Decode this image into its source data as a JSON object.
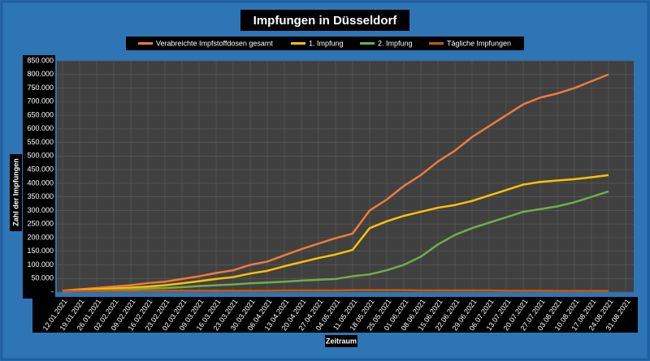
{
  "chart_data": {
    "type": "line",
    "title": "Impfungen in Düsseldorf",
    "x_label": "Zeitraum",
    "y_label": "Zahl der Impfungen",
    "categories": [
      "12.01.2021",
      "19.01.2021",
      "26.01.2021",
      "02.02.2021",
      "09.02.2021",
      "16.02.2021",
      "23.02.2021",
      "02.03.2021",
      "09.03.2021",
      "16.03.2021",
      "23.03.2021",
      "30.03.2021",
      "06.04.2021",
      "13.04.2021",
      "20.04.2021",
      "27.04.2021",
      "04.05.2021",
      "11.05.2021",
      "18.05.2021",
      "25.05.2021",
      "01.06.2021",
      "08.06.2021",
      "15.06.2021",
      "22.06.2021",
      "29.06.2021",
      "06.07.2021",
      "13.07.2021",
      "20.07.2021",
      "27.07.2021",
      "03.08.2021",
      "10.08.2021",
      "17.08.2021",
      "24.08.2021",
      "31.08.2021"
    ],
    "series": [
      {
        "name": "Verabreichte Impfstoffdosen gesamt",
        "color": "#f07a3c",
        "values": [
          5000,
          10000,
          15000,
          20000,
          25000,
          33000,
          38000,
          48000,
          58000,
          70000,
          80000,
          100000,
          112000,
          135000,
          158000,
          178000,
          198000,
          215000,
          300000,
          340000,
          390000,
          430000,
          480000,
          520000,
          570000,
          610000,
          650000,
          690000,
          715000,
          730000,
          750000,
          775000,
          800000,
          null
        ]
      },
      {
        "name": "1. Impfung",
        "color": "#ffc000",
        "values": [
          3000,
          7000,
          10000,
          13000,
          16000,
          20000,
          25000,
          32000,
          40000,
          48000,
          55000,
          68000,
          78000,
          95000,
          110000,
          125000,
          138000,
          155000,
          235000,
          260000,
          280000,
          295000,
          310000,
          320000,
          335000,
          355000,
          375000,
          395000,
          405000,
          410000,
          415000,
          422000,
          430000,
          null
        ]
      },
      {
        "name": "2. Impfung",
        "color": "#70ad47",
        "values": [
          2000,
          4000,
          6000,
          8000,
          10000,
          13000,
          15000,
          18000,
          22000,
          25000,
          28000,
          32000,
          35000,
          38000,
          42000,
          45000,
          48000,
          58000,
          65000,
          80000,
          100000,
          130000,
          175000,
          210000,
          235000,
          255000,
          275000,
          295000,
          305000,
          315000,
          330000,
          350000,
          370000,
          null
        ]
      },
      {
        "name": "Tägliche Impfungen",
        "color": "#c55a11",
        "values": [
          3000,
          4000,
          4000,
          4000,
          4000,
          5000,
          5000,
          5000,
          5000,
          5000,
          5000,
          5000,
          5000,
          6000,
          6000,
          6000,
          6000,
          7000,
          7000,
          7000,
          7000,
          6000,
          6000,
          6000,
          6000,
          6000,
          5000,
          5000,
          5000,
          4000,
          4000,
          4000,
          4000,
          null
        ]
      }
    ],
    "ylim": [
      0,
      850000
    ],
    "yticks": [
      {
        "value": 0,
        "label": "-"
      },
      {
        "value": 50000,
        "label": "50.000"
      },
      {
        "value": 100000,
        "label": "100.000"
      },
      {
        "value": 150000,
        "label": "150.000"
      },
      {
        "value": 200000,
        "label": "200.000"
      },
      {
        "value": 250000,
        "label": "250.000"
      },
      {
        "value": 300000,
        "label": "300.000"
      },
      {
        "value": 350000,
        "label": "350.000"
      },
      {
        "value": 400000,
        "label": "400.000"
      },
      {
        "value": 450000,
        "label": "450.000"
      },
      {
        "value": 500000,
        "label": "500.000"
      },
      {
        "value": 550000,
        "label": "550.000"
      },
      {
        "value": 600000,
        "label": "600.000"
      },
      {
        "value": 650000,
        "label": "650.000"
      },
      {
        "value": 700000,
        "label": "700.000"
      },
      {
        "value": 750000,
        "label": "750.000"
      },
      {
        "value": 800000,
        "label": "800.000"
      },
      {
        "value": 850000,
        "label": "850.000"
      }
    ],
    "grid": true
  }
}
